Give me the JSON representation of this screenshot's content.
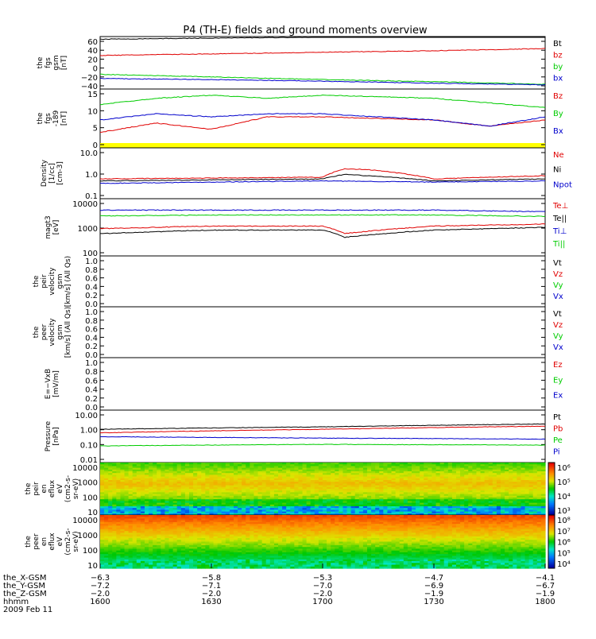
{
  "title": "P4 (TH-E) fields and ground moments overview",
  "colors": {
    "black": "#000000",
    "red": "#e00000",
    "green": "#00cc00",
    "blue": "#0000cc",
    "yellow": "#ffff00"
  },
  "panels": [
    {
      "id": "fgs",
      "ylabel": [
        "the",
        "fgs",
        "gsm",
        "[nT]"
      ],
      "ticks": [
        "60",
        "40",
        "20",
        "0",
        "−20",
        "−40"
      ],
      "legend": [
        {
          "t": "Bt",
          "c": "black"
        },
        {
          "t": "bz",
          "c": "red"
        },
        {
          "t": "by",
          "c": "green"
        },
        {
          "t": "bx",
          "c": "blue"
        }
      ]
    },
    {
      "id": "fgs_dsl",
      "ylabel": [
        "the",
        "fgs",
        "-189",
        "[nT]"
      ],
      "ticks": [
        "15",
        "10",
        "5",
        "0"
      ],
      "legend": [
        {
          "t": "Bz",
          "c": "red"
        },
        {
          "t": "By",
          "c": "green"
        },
        {
          "t": "Bx",
          "c": "blue"
        }
      ]
    },
    {
      "id": "density",
      "ylabel": [
        "Density",
        "[1/cc]",
        "[cm-3]"
      ],
      "ticks": [
        "10.0",
        "1.0",
        "0.1"
      ],
      "legend": [
        {
          "t": "Ne",
          "c": "red"
        },
        {
          "t": "Ni",
          "c": "black"
        },
        {
          "t": "Npot",
          "c": "blue"
        }
      ]
    },
    {
      "id": "temp",
      "ylabel": [
        "magt3",
        "[eV]"
      ],
      "ticks": [
        "10000",
        "1000",
        "100"
      ],
      "legend": [
        {
          "t": "Te⊥",
          "c": "red"
        },
        {
          "t": "Te||",
          "c": "black"
        },
        {
          "t": "Ti⊥",
          "c": "blue"
        },
        {
          "t": "Ti||",
          "c": "green"
        }
      ]
    },
    {
      "id": "peir_vel",
      "ylabel": [
        "the",
        "peir",
        "velocity",
        "gsm",
        "[km/s] (All Qs)"
      ],
      "ticks": [
        "1.0",
        "0.8",
        "0.6",
        "0.4",
        "0.2",
        "0.0"
      ],
      "legend": [
        {
          "t": "Vt",
          "c": "black"
        },
        {
          "t": "Vz",
          "c": "red"
        },
        {
          "t": "Vy",
          "c": "green"
        },
        {
          "t": "Vx",
          "c": "blue"
        }
      ]
    },
    {
      "id": "peer_vel",
      "ylabel": [
        "the",
        "peer",
        "velocity",
        "gsm",
        "[km/s] (All Qs)"
      ],
      "ticks": [
        "1.0",
        "0.8",
        "0.6",
        "0.4",
        "0.2",
        "0.0"
      ],
      "legend": [
        {
          "t": "Vt",
          "c": "black"
        },
        {
          "t": "Vz",
          "c": "red"
        },
        {
          "t": "Vy",
          "c": "green"
        },
        {
          "t": "Vx",
          "c": "blue"
        }
      ]
    },
    {
      "id": "efield",
      "ylabel": [
        "E=−VxB",
        "[mV/m]"
      ],
      "ticks": [
        "1.0",
        "0.8",
        "0.6",
        "0.4",
        "0.2",
        "0.0"
      ],
      "legend": [
        {
          "t": "Ez",
          "c": "red"
        },
        {
          "t": "Ey",
          "c": "green"
        },
        {
          "t": "Ex",
          "c": "blue"
        }
      ]
    },
    {
      "id": "pressure",
      "ylabel": [
        "Pressure",
        "[nPa]"
      ],
      "ticks": [
        "10.00",
        "1.00",
        "0.10",
        "0.01"
      ],
      "legend": [
        {
          "t": "Pt",
          "c": "black"
        },
        {
          "t": "Pb",
          "c": "red"
        },
        {
          "t": "Pe",
          "c": "green"
        },
        {
          "t": "Pi",
          "c": "blue"
        }
      ]
    },
    {
      "id": "peir_spec",
      "ylabel": [
        "the",
        "peir",
        "en",
        "eflux",
        "eV",
        "(cm2-s-",
        "sr-eV)"
      ],
      "ticks": [
        "10000",
        "1000",
        "100",
        "10"
      ],
      "colorbar": [
        "10⁶",
        "10⁵",
        "10⁴",
        "10³"
      ]
    },
    {
      "id": "peer_spec",
      "ylabel": [
        "the",
        "peer",
        "en",
        "eflux",
        "eV",
        "(cm2-s-",
        "sr-eV)"
      ],
      "ticks": [
        "10000",
        "1000",
        "100",
        "10"
      ],
      "colorbar": [
        "10⁸",
        "10⁷",
        "10⁶",
        "10⁵",
        "10⁴"
      ]
    }
  ],
  "xaxis": {
    "rows": [
      {
        "label": "the_X-GSM",
        "vals": [
          "−6.3",
          "−5.8",
          "−5.3",
          "−4.7",
          "−4.1"
        ]
      },
      {
        "label": "the_Y-GSM",
        "vals": [
          "−7.2",
          "−7.1",
          "−7.0",
          "−6.9",
          "−6.7"
        ]
      },
      {
        "label": "the_Z-GSM",
        "vals": [
          "−2.0",
          "−2.0",
          "−2.0",
          "−1.9",
          "−1.9"
        ]
      },
      {
        "label": "hhmm",
        "vals": [
          "1600",
          "1630",
          "1700",
          "1730",
          "1800"
        ]
      }
    ],
    "date": "2009 Feb 11"
  },
  "chart_data": [
    {
      "type": "line",
      "panel": "fgs",
      "x_range": [
        1600,
        1800
      ],
      "ylim": [
        -40,
        60
      ],
      "series": [
        {
          "name": "Bt",
          "values": [
            [
              1600,
              55
            ],
            [
              1630,
              57
            ],
            [
              1700,
              59
            ],
            [
              1730,
              61
            ],
            [
              1800,
              63
            ]
          ]
        },
        {
          "name": "bz",
          "values": [
            [
              1600,
              24
            ],
            [
              1630,
              27
            ],
            [
              1700,
              30
            ],
            [
              1730,
              33
            ],
            [
              1800,
              37
            ]
          ]
        },
        {
          "name": "by",
          "values": [
            [
              1600,
              -12
            ],
            [
              1630,
              -17
            ],
            [
              1700,
              -22
            ],
            [
              1730,
              -26
            ],
            [
              1800,
              -31
            ]
          ]
        },
        {
          "name": "bx",
          "values": [
            [
              1600,
              -20
            ],
            [
              1630,
              -22
            ],
            [
              1700,
              -25
            ],
            [
              1730,
              -29
            ],
            [
              1800,
              -32
            ]
          ]
        }
      ]
    },
    {
      "type": "line",
      "panel": "fgs_dsl",
      "ylim": [
        -2,
        17
      ],
      "series": [
        {
          "name": "Bz",
          "values": [
            [
              1600,
              3
            ],
            [
              1615,
              6
            ],
            [
              1630,
              4
            ],
            [
              1645,
              8
            ],
            [
              1700,
              8
            ],
            [
              1730,
              7
            ],
            [
              1745,
              5
            ],
            [
              1800,
              7
            ]
          ]
        },
        {
          "name": "By",
          "values": [
            [
              1600,
              12
            ],
            [
              1615,
              14
            ],
            [
              1630,
              15
            ],
            [
              1645,
              14
            ],
            [
              1700,
              15
            ],
            [
              1730,
              14
            ],
            [
              1800,
              11
            ]
          ]
        },
        {
          "name": "Bx",
          "values": [
            [
              1600,
              7
            ],
            [
              1615,
              9
            ],
            [
              1630,
              8
            ],
            [
              1645,
              9
            ],
            [
              1700,
              9
            ],
            [
              1730,
              7
            ],
            [
              1745,
              5
            ],
            [
              1800,
              8
            ]
          ]
        }
      ]
    },
    {
      "type": "line",
      "panel": "density",
      "yscale": "log",
      "ylim": [
        0.1,
        10
      ],
      "series": [
        {
          "name": "Ne",
          "values": [
            [
              1600,
              0.6
            ],
            [
              1700,
              0.7
            ],
            [
              1706,
              1.5
            ],
            [
              1712,
              1.4
            ],
            [
              1730,
              0.6
            ],
            [
              1800,
              0.8
            ]
          ]
        },
        {
          "name": "Ni",
          "values": [
            [
              1600,
              0.5
            ],
            [
              1700,
              0.6
            ],
            [
              1706,
              0.9
            ],
            [
              1730,
              0.5
            ],
            [
              1800,
              0.6
            ]
          ]
        },
        {
          "name": "Npot",
          "values": [
            [
              1600,
              0.4
            ],
            [
              1700,
              0.5
            ],
            [
              1730,
              0.45
            ],
            [
              1800,
              0.5
            ]
          ]
        }
      ]
    },
    {
      "type": "line",
      "panel": "temp",
      "yscale": "log",
      "ylim": [
        100,
        10000
      ],
      "series": [
        {
          "name": "Te⊥",
          "values": [
            [
              1600,
              900
            ],
            [
              1630,
              1100
            ],
            [
              1700,
              1100
            ],
            [
              1706,
              600
            ],
            [
              1730,
              1100
            ],
            [
              1800,
              1300
            ]
          ]
        },
        {
          "name": "Te||",
          "values": [
            [
              1600,
              600
            ],
            [
              1630,
              800
            ],
            [
              1700,
              800
            ],
            [
              1706,
              450
            ],
            [
              1730,
              800
            ],
            [
              1800,
              1000
            ]
          ]
        },
        {
          "name": "Ti⊥",
          "values": [
            [
              1600,
              4000
            ],
            [
              1630,
              4000
            ],
            [
              1700,
              4000
            ],
            [
              1730,
              4000
            ],
            [
              1800,
              3500
            ]
          ]
        },
        {
          "name": "Ti||",
          "values": [
            [
              1600,
              2500
            ],
            [
              1630,
              2700
            ],
            [
              1700,
              2700
            ],
            [
              1730,
              2700
            ],
            [
              1800,
              2400
            ]
          ]
        }
      ]
    },
    {
      "type": "line",
      "panel": "pressure",
      "yscale": "log",
      "ylim": [
        0.01,
        10
      ],
      "series": [
        {
          "name": "Pt",
          "values": [
            [
              1600,
              0.8
            ],
            [
              1700,
              1.1
            ],
            [
              1800,
              1.6
            ]
          ]
        },
        {
          "name": "Pb",
          "values": [
            [
              1600,
              0.5
            ],
            [
              1700,
              0.8
            ],
            [
              1800,
              1.2
            ]
          ]
        },
        {
          "name": "Pe",
          "values": [
            [
              1600,
              0.09
            ],
            [
              1700,
              0.11
            ],
            [
              1800,
              0.1
            ]
          ]
        },
        {
          "name": "Pi",
          "values": [
            [
              1600,
              0.3
            ],
            [
              1700,
              0.25
            ],
            [
              1800,
              0.22
            ]
          ]
        }
      ]
    },
    {
      "type": "heatmap",
      "panel": "peir_spec",
      "ylabel": "eV",
      "yscale": "log",
      "ylim": [
        5,
        20000
      ]
    },
    {
      "type": "heatmap",
      "panel": "peer_spec",
      "ylabel": "eV",
      "yscale": "log",
      "ylim": [
        5,
        20000
      ]
    }
  ]
}
